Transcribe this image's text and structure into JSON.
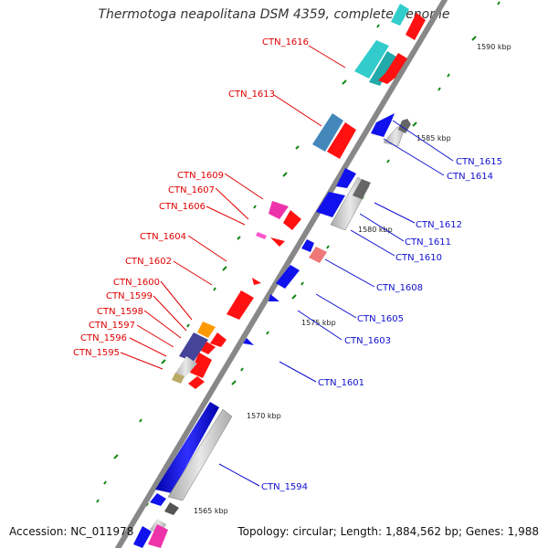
{
  "title": "Thermotoga neapolitana DSM 4359, complete genome",
  "accession": "Accession: NC_011978",
  "topology": "Topology: circular; Length: 1,884,562 bp; Genes: 1,988",
  "ticks": [
    "1590 kbp",
    "1585 kbp",
    "1580 kbp",
    "1575 kbp",
    "1570 kbp",
    "1565 kbp"
  ],
  "genes_left": [
    "CTN_1616",
    "CTN_1613",
    "CTN_1609",
    "CTN_1607",
    "CTN_1606",
    "CTN_1604",
    "CTN_1602",
    "CTN_1600",
    "CTN_1599",
    "CTN_1598",
    "CTN_1597",
    "CTN_1596",
    "CTN_1595"
  ],
  "genes_right": [
    "CTN_1615",
    "CTN_1614",
    "CTN_1612",
    "CTN_1611",
    "CTN_1610",
    "CTN_1608",
    "CTN_1605",
    "CTN_1603",
    "CTN_1601",
    "CTN_1594"
  ],
  "colors": {
    "forward_cds": "#ff0000",
    "reverse_cds": "#0000ee",
    "backbone": "#888888",
    "gc_marks": "#118811",
    "label_left": "#e00000",
    "label_right": "#1010d0"
  }
}
